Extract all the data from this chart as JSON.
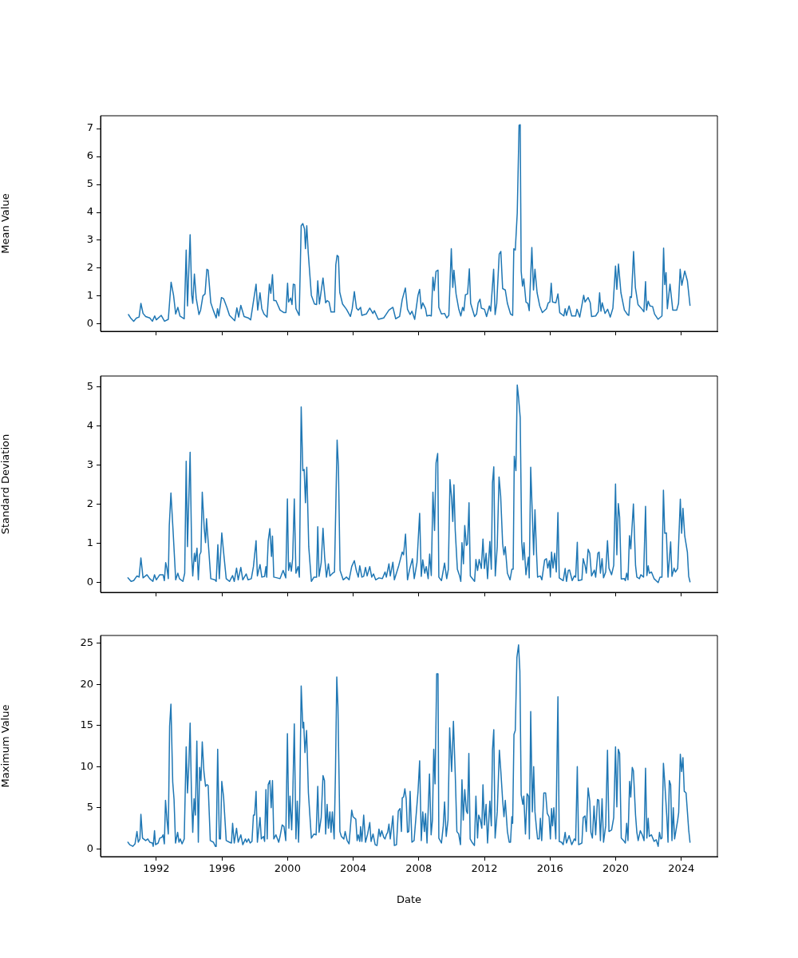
{
  "chart_data": [
    {
      "type": "line",
      "ylabel": "Mean Value",
      "xlim": [
        1988.6,
        2026.2
      ],
      "xticks": [
        1992,
        1996,
        2000,
        2004,
        2008,
        2012,
        2016,
        2020,
        2024
      ],
      "ylim": [
        -0.26,
        7.46
      ],
      "yticks": [
        0,
        1,
        2,
        3,
        4,
        5,
        6,
        7
      ],
      "tick_labels": "y",
      "series": [
        {
          "color": "#1f77b4",
          "x": [
            1990.3,
            1990.43,
            1990.62,
            1990.78,
            1990.95,
            1991.06,
            1991.19,
            1991.35,
            1991.6,
            1991.76,
            1991.9,
            1992.0,
            1992.3,
            1992.5,
            1992.73,
            1992.9,
            1993.05,
            1993.18,
            1993.31,
            1993.44,
            1993.7,
            1993.82,
            1993.9,
            1994.06,
            1994.16,
            1994.22,
            1994.32,
            1994.43,
            1994.6,
            1994.7,
            1994.84,
            1994.97,
            1995.08,
            1995.16,
            1995.32,
            1995.48,
            1995.65,
            1995.73,
            1995.81,
            1995.97,
            1996.1,
            1996.3,
            1996.46,
            1996.78,
            1996.91,
            1997.02,
            1997.15,
            1997.35,
            1997.6,
            1997.75,
            1998.08,
            1998.18,
            1998.32,
            1998.43,
            1998.56,
            1998.75,
            1998.89,
            1998.98,
            1999.08,
            1999.16,
            1999.29,
            1999.54,
            1999.78,
            1999.9,
            2000.0,
            2000.06,
            2000.19,
            2000.27,
            2000.35,
            2000.44,
            2000.51,
            2000.71,
            2000.83,
            2000.93,
            2001.03,
            2001.09,
            2001.17,
            2001.26,
            2001.45,
            2001.64,
            2001.77,
            2001.84,
            2001.94,
            2002.16,
            2002.32,
            2002.42,
            2002.53,
            2002.65,
            2002.86,
            2002.94,
            2003.02,
            2003.1,
            2003.18,
            2003.35,
            2003.59,
            2003.83,
            2003.94,
            2004.07,
            2004.2,
            2004.31,
            2004.45,
            2004.53,
            2004.8,
            2005.01,
            2005.2,
            2005.29,
            2005.53,
            2005.86,
            2006.02,
            2006.18,
            2006.42,
            2006.59,
            2006.83,
            2006.99,
            2007.18,
            2007.31,
            2007.47,
            2007.58,
            2007.75,
            2007.95,
            2008.05,
            2008.15,
            2008.24,
            2008.41,
            2008.49,
            2008.65,
            2008.76,
            2008.86,
            2008.94,
            2009.05,
            2009.17,
            2009.22,
            2009.38,
            2009.57,
            2009.7,
            2009.83,
            2009.98,
            2010.07,
            2010.14,
            2010.27,
            2010.43,
            2010.56,
            2010.67,
            2010.75,
            2010.84,
            2010.97,
            2011.08,
            2011.16,
            2011.4,
            2011.52,
            2011.62,
            2011.73,
            2011.81,
            2012.0,
            2012.13,
            2012.3,
            2012.38,
            2012.56,
            2012.65,
            2012.75,
            2012.9,
            2013.0,
            2013.11,
            2013.27,
            2013.4,
            2013.59,
            2013.72,
            2013.79,
            2013.88,
            2014.0,
            2014.11,
            2014.18,
            2014.24,
            2014.32,
            2014.4,
            2014.53,
            2014.65,
            2014.73,
            2014.89,
            2014.99,
            2015.08,
            2015.21,
            2015.37,
            2015.53,
            2015.78,
            2015.89,
            2015.99,
            2016.07,
            2016.15,
            2016.35,
            2016.48,
            2016.59,
            2016.84,
            2016.92,
            2017.0,
            2017.16,
            2017.32,
            2017.56,
            2017.64,
            2017.81,
            2018.05,
            2018.13,
            2018.32,
            2018.45,
            2018.53,
            2018.78,
            2018.94,
            2019.02,
            2019.1,
            2019.18,
            2019.35,
            2019.51,
            2019.67,
            2019.83,
            2019.99,
            2020.07,
            2020.17,
            2020.32,
            2020.53,
            2020.72,
            2020.8,
            2020.88,
            2020.96,
            2021.09,
            2021.2,
            2021.36,
            2021.61,
            2021.72,
            2021.82,
            2021.88,
            2021.98,
            2022.09,
            2022.25,
            2022.37,
            2022.58,
            2022.82,
            2022.92,
            2022.99,
            2023.07,
            2023.15,
            2023.31,
            2023.48,
            2023.72,
            2023.83,
            2023.93,
            2024.03,
            2024.21,
            2024.37,
            2024.53
          ],
          "values": [
            0.34,
            0.22,
            0.1,
            0.21,
            0.25,
            0.74,
            0.38,
            0.27,
            0.22,
            0.1,
            0.29,
            0.15,
            0.31,
            0.1,
            0.17,
            1.5,
            1.03,
            0.36,
            0.6,
            0.29,
            0.19,
            2.65,
            0.65,
            3.2,
            1.03,
            0.74,
            1.79,
            0.93,
            0.34,
            0.5,
            1.01,
            1.08,
            1.96,
            1.93,
            0.76,
            0.48,
            0.22,
            0.55,
            0.29,
            0.95,
            0.91,
            0.6,
            0.31,
            0.12,
            0.58,
            0.25,
            0.67,
            0.27,
            0.22,
            0.15,
            1.43,
            0.5,
            1.12,
            0.55,
            0.36,
            0.25,
            1.43,
            1.1,
            1.77,
            0.84,
            0.84,
            0.5,
            0.41,
            0.41,
            1.46,
            0.79,
            0.93,
            0.7,
            1.43,
            1.41,
            0.55,
            0.31,
            3.52,
            3.6,
            3.41,
            2.7,
            3.52,
            2.55,
            1.03,
            0.72,
            0.7,
            1.55,
            0.72,
            1.65,
            0.76,
            0.84,
            0.79,
            0.43,
            0.43,
            2.12,
            2.46,
            2.41,
            1.14,
            0.72,
            0.53,
            0.27,
            0.55,
            1.16,
            0.57,
            0.5,
            0.6,
            0.31,
            0.36,
            0.57,
            0.38,
            0.48,
            0.17,
            0.22,
            0.36,
            0.5,
            0.6,
            0.19,
            0.27,
            0.88,
            1.29,
            0.53,
            0.34,
            0.46,
            0.17,
            1.03,
            1.24,
            0.55,
            0.76,
            0.55,
            0.29,
            0.31,
            0.29,
            1.68,
            1.2,
            1.89,
            1.93,
            0.6,
            0.36,
            0.38,
            0.22,
            0.31,
            2.7,
            1.31,
            1.93,
            1.08,
            0.55,
            0.29,
            0.6,
            0.48,
            1.05,
            1.08,
            1.98,
            0.74,
            0.27,
            0.36,
            0.76,
            0.89,
            0.57,
            0.53,
            0.27,
            0.65,
            0.46,
            1.96,
            0.34,
            0.74,
            2.5,
            2.6,
            1.27,
            1.22,
            0.74,
            0.36,
            0.31,
            2.7,
            2.65,
            3.98,
            7.12,
            7.14,
            1.89,
            1.36,
            1.62,
            0.79,
            0.74,
            0.48,
            2.74,
            1.22,
            1.96,
            1.12,
            0.65,
            0.41,
            0.55,
            0.76,
            0.79,
            1.46,
            0.79,
            0.76,
            1.08,
            0.41,
            0.29,
            0.55,
            0.31,
            0.65,
            0.29,
            0.29,
            0.53,
            0.25,
            1.03,
            0.79,
            0.95,
            0.76,
            0.27,
            0.29,
            0.44,
            1.12,
            0.46,
            0.76,
            0.38,
            0.53,
            0.25,
            0.57,
            2.08,
            1.24,
            2.15,
            1.12,
            0.5,
            0.34,
            0.31,
            0.98,
            0.95,
            2.6,
            1.31,
            0.7,
            0.53,
            0.44,
            1.52,
            0.5,
            0.82,
            0.65,
            0.63,
            0.36,
            0.17,
            0.29,
            2.72,
            1.41,
            1.84,
            0.55,
            1.43,
            0.5,
            0.5,
            0.74,
            1.96,
            1.39,
            1.9,
            1.55,
            0.67
          ]
        }
      ]
    },
    {
      "type": "line",
      "ylabel": "Standard Deviation",
      "xlim": [
        1988.6,
        2026.2
      ],
      "xticks": [
        1992,
        1996,
        2000,
        2004,
        2008,
        2012,
        2016,
        2020,
        2024
      ],
      "ylim": [
        -0.25,
        5.28
      ],
      "yticks": [
        0,
        1,
        2,
        3,
        4,
        5
      ],
      "tick_labels": "y",
      "series": [
        {
          "color": "#1f77b4",
          "x": [
            1990.27,
            1990.46,
            1990.62,
            1990.82,
            1990.95,
            1991.06,
            1991.19,
            1991.43,
            1991.6,
            1991.79,
            1991.89,
            1992.0,
            1992.21,
            1992.41,
            1992.49,
            1992.57,
            1992.65,
            1992.73,
            1992.79,
            1992.89,
            1993.02,
            1993.18,
            1993.31,
            1993.41,
            1993.62,
            1993.73,
            1993.82,
            1993.9,
            1994.06,
            1994.16,
            1994.22,
            1994.32,
            1994.38,
            1994.48,
            1994.56,
            1994.64,
            1994.72,
            1994.8,
            1994.92,
            1995.0,
            1995.06,
            1995.16,
            1995.32,
            1995.57,
            1995.65,
            1995.75,
            1995.84,
            1995.99,
            1996.13,
            1996.26,
            1996.46,
            1996.65,
            1996.75,
            1996.89,
            1996.99,
            1997.15,
            1997.27,
            1997.48,
            1997.59,
            1997.79,
            1997.92,
            1998.08,
            1998.16,
            1998.32,
            1998.43,
            1998.6,
            1998.68,
            1998.73,
            1998.82,
            1998.92,
            1999.02,
            1999.08,
            1999.16,
            1999.37,
            1999.54,
            1999.73,
            1999.89,
            1999.99,
            2000.06,
            2000.15,
            2000.23,
            2000.31,
            2000.41,
            2000.51,
            2000.64,
            2000.72,
            2000.83,
            2000.93,
            2001.01,
            2001.09,
            2001.17,
            2001.29,
            2001.45,
            2001.61,
            2001.77,
            2001.84,
            2001.92,
            2002.05,
            2002.16,
            2002.26,
            2002.37,
            2002.49,
            2002.58,
            2002.75,
            2002.86,
            2003.02,
            2003.1,
            2003.2,
            2003.39,
            2003.59,
            2003.75,
            2003.91,
            2004.07,
            2004.19,
            2004.31,
            2004.4,
            2004.53,
            2004.64,
            2004.75,
            2004.85,
            2005.01,
            2005.13,
            2005.24,
            2005.37,
            2005.57,
            2005.78,
            2005.94,
            2006.02,
            2006.18,
            2006.26,
            2006.42,
            2006.51,
            2006.78,
            2006.99,
            2007.07,
            2007.19,
            2007.31,
            2007.44,
            2007.61,
            2007.72,
            2007.89,
            2008.05,
            2008.15,
            2008.24,
            2008.36,
            2008.45,
            2008.57,
            2008.66,
            2008.76,
            2008.86,
            2008.96,
            2009.05,
            2009.15,
            2009.22,
            2009.38,
            2009.57,
            2009.7,
            2009.8,
            2009.9,
            2010.0,
            2010.07,
            2010.14,
            2010.22,
            2010.35,
            2010.48,
            2010.56,
            2010.63,
            2010.72,
            2010.8,
            2010.9,
            2010.97,
            2011.06,
            2011.14,
            2011.4,
            2011.48,
            2011.58,
            2011.68,
            2011.81,
            2011.91,
            2012.0,
            2012.1,
            2012.19,
            2012.33,
            2012.42,
            2012.49,
            2012.57,
            2012.66,
            2012.78,
            2012.89,
            2012.99,
            2013.11,
            2013.19,
            2013.27,
            2013.4,
            2013.56,
            2013.67,
            2013.75,
            2013.82,
            2013.92,
            2014.0,
            2014.08,
            2014.18,
            2014.27,
            2014.35,
            2014.41,
            2014.53,
            2014.68,
            2014.73,
            2014.82,
            2014.92,
            2015.0,
            2015.08,
            2015.18,
            2015.24,
            2015.41,
            2015.5,
            2015.67,
            2015.78,
            2015.86,
            2015.96,
            2016.02,
            2016.09,
            2016.18,
            2016.28,
            2016.38,
            2016.48,
            2016.56,
            2016.8,
            2016.92,
            2017.0,
            2017.11,
            2017.19,
            2017.35,
            2017.48,
            2017.56,
            2017.66,
            2017.72,
            2017.94,
            2018.02,
            2018.13,
            2018.21,
            2018.32,
            2018.42,
            2018.53,
            2018.7,
            2018.78,
            2018.91,
            2018.99,
            2019.07,
            2019.17,
            2019.26,
            2019.39,
            2019.5,
            2019.59,
            2019.75,
            2019.88,
            2019.99,
            2020.07,
            2020.16,
            2020.24,
            2020.34,
            2020.53,
            2020.59,
            2020.67,
            2020.75,
            2020.84,
            2020.92,
            2021.08,
            2021.21,
            2021.29,
            2021.45,
            2021.53,
            2021.7,
            2021.82,
            2021.9,
            2021.98,
            2022.05,
            2022.18,
            2022.34,
            2022.59,
            2022.7,
            2022.82,
            2022.91,
            2022.99,
            2023.09,
            2023.19,
            2023.35,
            2023.43,
            2023.56,
            2023.64,
            2023.78,
            2023.94,
            2024.02,
            2024.1,
            2024.21,
            2024.37,
            2024.45,
            2024.53
          ],
          "values": [
            0.12,
            0.03,
            0.05,
            0.17,
            0.14,
            0.63,
            0.12,
            0.2,
            0.1,
            0.03,
            0.2,
            0.07,
            0.2,
            0.2,
            0.05,
            0.51,
            0.36,
            0.1,
            1.46,
            2.29,
            1.33,
            0.07,
            0.24,
            0.1,
            0.03,
            0.24,
            3.1,
            0.92,
            3.33,
            0.65,
            0.17,
            0.75,
            0.54,
            0.88,
            0.07,
            0.71,
            0.78,
            2.31,
            1.39,
            1.02,
            1.63,
            1.05,
            0.1,
            0.07,
            0.03,
            0.97,
            0.1,
            1.27,
            0.65,
            0.1,
            0.03,
            0.18,
            0.03,
            0.37,
            0.07,
            0.39,
            0.07,
            0.22,
            0.07,
            0.1,
            0.41,
            1.07,
            0.17,
            0.46,
            0.14,
            0.16,
            0.41,
            0.14,
            1.07,
            1.38,
            0.67,
            1.19,
            0.14,
            0.12,
            0.1,
            0.31,
            0.12,
            2.14,
            0.31,
            0.51,
            0.29,
            0.61,
            2.14,
            0.24,
            0.41,
            0.14,
            4.49,
            2.86,
            2.89,
            2.04,
            2.95,
            0.92,
            0.03,
            0.14,
            0.14,
            1.43,
            0.16,
            0.51,
            1.39,
            0.65,
            0.14,
            0.48,
            0.17,
            0.24,
            0.27,
            3.64,
            2.96,
            0.31,
            0.07,
            0.14,
            0.07,
            0.41,
            0.56,
            0.31,
            0.14,
            0.43,
            0.14,
            0.16,
            0.39,
            0.17,
            0.41,
            0.14,
            0.22,
            0.07,
            0.12,
            0.1,
            0.27,
            0.14,
            0.48,
            0.17,
            0.52,
            0.07,
            0.44,
            0.78,
            0.71,
            1.24,
            0.07,
            0.34,
            0.61,
            0.1,
            0.52,
            1.77,
            0.16,
            0.58,
            0.24,
            0.41,
            0.1,
            0.73,
            0.18,
            2.31,
            1.33,
            3.06,
            3.3,
            0.14,
            0.05,
            0.5,
            0.1,
            0.34,
            2.63,
            2.14,
            1.56,
            2.5,
            1.33,
            0.34,
            0.18,
            0.03,
            1.02,
            0.48,
            1.46,
            0.95,
            0.99,
            2.04,
            0.17,
            0.03,
            0.59,
            0.31,
            0.59,
            0.36,
            1.11,
            0.36,
            0.75,
            0.1,
            1.05,
            0.34,
            2.55,
            2.96,
            0.17,
            0.92,
            2.7,
            2.21,
            0.99,
            0.71,
            0.92,
            0.24,
            0.07,
            0.34,
            0.34,
            3.23,
            2.86,
            5.05,
            4.73,
            4.22,
            1.05,
            0.58,
            1.02,
            0.2,
            0.65,
            0.12,
            2.95,
            1.73,
            0.71,
            1.86,
            0.71,
            0.14,
            0.17,
            0.07,
            0.58,
            0.61,
            0.37,
            0.56,
            0.14,
            0.78,
            0.37,
            0.75,
            0.27,
            1.79,
            0.12,
            0.05,
            0.36,
            0.03,
            0.31,
            0.32,
            0.05,
            0.17,
            0.14,
            1.03,
            0.05,
            0.07,
            0.61,
            0.44,
            0.24,
            0.85,
            0.75,
            0.17,
            0.32,
            0.14,
            0.75,
            0.78,
            0.24,
            0.61,
            0.12,
            0.27,
            1.07,
            0.37,
            0.2,
            0.44,
            2.52,
            0.71,
            2.02,
            1.67,
            0.09,
            0.1,
            0.05,
            0.24,
            0.07,
            1.2,
            0.86,
            2.01,
            0.44,
            0.14,
            0.1,
            0.2,
            0.14,
            1.95,
            0.18,
            0.43,
            0.24,
            0.27,
            0.1,
            0.0,
            0.14,
            0.14,
            2.36,
            1.26,
            1.27,
            0.14,
            1.04,
            0.16,
            0.37,
            0.27,
            0.36,
            2.13,
            1.26,
            1.9,
            1.19,
            0.78,
            0.16,
            0.02
          ]
        }
      ]
    },
    {
      "type": "line",
      "ylabel": "Maximum Value",
      "xlabel": "Date",
      "xlim": [
        1988.6,
        2026.2
      ],
      "xticks": [
        1992,
        1996,
        2000,
        2004,
        2008,
        2012,
        2016,
        2020,
        2024
      ],
      "ylim": [
        -0.95,
        25.95
      ],
      "yticks": [
        0,
        5,
        10,
        15,
        20,
        25
      ],
      "series": [
        {
          "color": "#1f77b4",
          "x": [
            1990.27,
            1990.38,
            1990.57,
            1990.7,
            1990.82,
            1990.9,
            1991.0,
            1991.06,
            1991.16,
            1991.35,
            1991.48,
            1991.6,
            1991.76,
            1991.81,
            1991.89,
            1991.95,
            1992.11,
            1992.21,
            1992.34,
            1992.41,
            1992.49,
            1992.56,
            1992.65,
            1992.73,
            1992.81,
            1992.89,
            1993.0,
            1993.08,
            1993.17,
            1993.3,
            1993.38,
            1993.46,
            1993.57,
            1993.7,
            1993.82,
            1993.9,
            1993.98,
            1994.06,
            1994.14,
            1994.22,
            1994.3,
            1994.38,
            1994.47,
            1994.56,
            1994.64,
            1994.72,
            1994.8,
            1994.9,
            1995.0,
            1995.08,
            1995.16,
            1995.29,
            1995.48,
            1995.6,
            1995.65,
            1995.74,
            1995.84,
            1995.91,
            1995.99,
            1996.1,
            1996.26,
            1996.46,
            1996.58,
            1996.65,
            1996.75,
            1996.89,
            1996.99,
            1997.15,
            1997.27,
            1997.43,
            1997.51,
            1997.62,
            1997.72,
            1997.83,
            1997.92,
            1997.99,
            1998.08,
            1998.16,
            1998.32,
            1998.4,
            1998.53,
            1998.6,
            1998.68,
            1998.76,
            1998.82,
            1998.92,
            1999.0,
            1999.08,
            1999.16,
            1999.29,
            1999.46,
            1999.54,
            1999.67,
            1999.78,
            1999.89,
            1999.99,
            2000.08,
            2000.15,
            2000.25,
            2000.31,
            2000.41,
            2000.51,
            2000.59,
            2000.67,
            2000.74,
            2000.83,
            2000.93,
            2000.98,
            2001.06,
            2001.16,
            2001.27,
            2001.45,
            2001.61,
            2001.74,
            2001.84,
            2001.92,
            2002.05,
            2002.16,
            2002.25,
            2002.32,
            2002.41,
            2002.49,
            2002.58,
            2002.65,
            2002.73,
            2002.84,
            2002.92,
            2003.0,
            2003.07,
            2003.19,
            2003.28,
            2003.43,
            2003.51,
            2003.63,
            2003.75,
            2003.91,
            2003.99,
            2004.16,
            2004.24,
            2004.31,
            2004.4,
            2004.45,
            2004.53,
            2004.64,
            2004.75,
            2004.88,
            2005.01,
            2005.09,
            2005.21,
            2005.34,
            2005.45,
            2005.57,
            2005.65,
            2005.74,
            2005.86,
            2005.94,
            2006.02,
            2006.1,
            2006.18,
            2006.26,
            2006.42,
            2006.51,
            2006.64,
            2006.75,
            2006.86,
            2006.94,
            2006.99,
            2007.07,
            2007.15,
            2007.23,
            2007.31,
            2007.39,
            2007.47,
            2007.58,
            2007.71,
            2007.95,
            2008.05,
            2008.15,
            2008.24,
            2008.34,
            2008.41,
            2008.5,
            2008.65,
            2008.75,
            2008.83,
            2008.91,
            2008.99,
            2009.09,
            2009.17,
            2009.22,
            2009.38,
            2009.49,
            2009.57,
            2009.67,
            2009.78,
            2009.88,
            2010.0,
            2010.11,
            2010.22,
            2010.32,
            2010.43,
            2010.54,
            2010.63,
            2010.71,
            2010.8,
            2010.9,
            2010.97,
            2011.05,
            2011.13,
            2011.24,
            2011.39,
            2011.48,
            2011.58,
            2011.65,
            2011.74,
            2011.84,
            2011.91,
            2012.0,
            2012.1,
            2012.19,
            2012.33,
            2012.42,
            2012.49,
            2012.57,
            2012.65,
            2012.78,
            2012.91,
            2013.0,
            2013.11,
            2013.19,
            2013.27,
            2013.4,
            2013.51,
            2013.59,
            2013.67,
            2013.72,
            2013.8,
            2013.88,
            2013.98,
            2014.08,
            2014.16,
            2014.24,
            2014.34,
            2014.4,
            2014.5,
            2014.6,
            2014.69,
            2014.74,
            2014.82,
            2014.92,
            2015.0,
            2015.08,
            2015.18,
            2015.24,
            2015.34,
            2015.41,
            2015.49,
            2015.62,
            2015.73,
            2015.83,
            2015.94,
            2016.02,
            2016.09,
            2016.15,
            2016.23,
            2016.35,
            2016.48,
            2016.56,
            2016.7,
            2016.8,
            2016.92,
            2017.0,
            2017.16,
            2017.32,
            2017.48,
            2017.56,
            2017.66,
            2017.74,
            2017.94,
            2018.02,
            2018.13,
            2018.21,
            2018.32,
            2018.42,
            2018.49,
            2018.58,
            2018.68,
            2018.78,
            2018.89,
            2018.97,
            2019.07,
            2019.17,
            2019.26,
            2019.39,
            2019.5,
            2019.59,
            2019.75,
            2019.88,
            2019.99,
            2020.07,
            2020.16,
            2020.24,
            2020.34,
            2020.48,
            2020.59,
            2020.67,
            2020.75,
            2020.85,
            2020.92,
            2021.01,
            2021.08,
            2021.21,
            2021.29,
            2021.37,
            2021.5,
            2021.62,
            2021.73,
            2021.82,
            2021.9,
            2021.98,
            2022.05,
            2022.18,
            2022.34,
            2022.47,
            2022.59,
            2022.67,
            2022.75,
            2022.82,
            2022.91,
            2022.99,
            2023.12,
            2023.19,
            2023.27,
            2023.35,
            2023.43,
            2023.51,
            2023.59,
            2023.78,
            2023.84,
            2023.94,
            2024.02,
            2024.1,
            2024.18,
            2024.29,
            2024.45,
            2024.53
          ],
          "values": [
            0.8,
            0.5,
            0.3,
            0.6,
            2.1,
            0.8,
            1.2,
            4.2,
            1.3,
            1.0,
            1.2,
            0.8,
            0.7,
            0.3,
            2.2,
            0.5,
            0.7,
            1.3,
            1.4,
            1.7,
            0.6,
            5.9,
            3.5,
            1.8,
            14.9,
            17.6,
            8.1,
            6.0,
            0.7,
            2.0,
            0.8,
            1.2,
            0.6,
            1.2,
            12.4,
            6.8,
            10.1,
            15.3,
            6.8,
            2.0,
            6.1,
            4.1,
            13.1,
            0.8,
            9.9,
            8.3,
            13.0,
            9.4,
            7.6,
            7.8,
            7.7,
            1.0,
            0.8,
            0.3,
            0.3,
            12.1,
            1.2,
            1.2,
            8.2,
            6.3,
            1.0,
            0.8,
            0.7,
            3.1,
            0.7,
            2.5,
            0.8,
            1.7,
            0.5,
            1.2,
            0.8,
            1.2,
            0.7,
            0.9,
            4.1,
            4.1,
            7.0,
            0.8,
            3.8,
            1.2,
            1.5,
            0.9,
            7.2,
            1.2,
            7.8,
            8.3,
            5.0,
            8.3,
            1.2,
            1.7,
            0.8,
            1.5,
            2.9,
            2.7,
            1.0,
            14.0,
            2.5,
            6.4,
            2.3,
            5.8,
            15.2,
            1.2,
            5.8,
            0.8,
            5.8,
            19.8,
            14.7,
            15.4,
            11.7,
            14.4,
            6.8,
            1.3,
            1.8,
            1.7,
            7.6,
            2.0,
            3.8,
            8.9,
            8.3,
            1.8,
            5.4,
            2.5,
            4.5,
            2.0,
            4.5,
            1.2,
            9.4,
            20.9,
            17.3,
            2.1,
            1.5,
            1.2,
            2.1,
            1.0,
            0.6,
            4.7,
            3.9,
            3.6,
            1.0,
            1.7,
            0.9,
            2.7,
            0.9,
            4.1,
            0.8,
            1.8,
            3.2,
            0.9,
            1.8,
            0.5,
            0.4,
            2.4,
            1.5,
            2.2,
            1.4,
            1.2,
            1.7,
            2.0,
            3.0,
            1.2,
            4.0,
            0.4,
            0.5,
            4.6,
            4.9,
            2.1,
            6.2,
            6.3,
            7.3,
            6.1,
            2.0,
            2.1,
            7.0,
            0.8,
            1.0,
            6.9,
            10.7,
            1.0,
            4.5,
            2.1,
            4.3,
            0.7,
            9.1,
            1.7,
            3.5,
            12.1,
            7.9,
            21.3,
            21.3,
            1.3,
            0.7,
            2.8,
            5.7,
            1.5,
            3.5,
            14.7,
            9.4,
            15.5,
            9.1,
            2.1,
            1.8,
            0.5,
            8.4,
            3.5,
            7.2,
            4.6,
            4.3,
            11.6,
            1.2,
            0.8,
            0.4,
            6.4,
            1.3,
            4.1,
            3.6,
            2.5,
            7.8,
            2.9,
            5.4,
            0.7,
            5.8,
            2.8,
            12.0,
            14.5,
            1.3,
            4.5,
            12.0,
            9.4,
            5.9,
            3.9,
            5.9,
            2.1,
            0.8,
            0.8,
            3.9,
            3.1,
            13.9,
            14.4,
            23.3,
            24.8,
            21.6,
            6.6,
            5.4,
            6.4,
            1.8,
            6.7,
            6.4,
            1.2,
            16.7,
            4.5,
            10.0,
            4.5,
            2.3,
            1.2,
            1.2,
            3.7,
            1.0,
            6.8,
            6.8,
            4.3,
            3.9,
            1.2,
            4.9,
            2.8,
            5.0,
            1.2,
            18.5,
            0.9,
            0.8,
            0.5,
            2.0,
            0.7,
            1.6,
            0.5,
            1.2,
            1.0,
            10.0,
            0.5,
            0.7,
            3.8,
            4.0,
            2.1,
            7.4,
            5.8,
            2.0,
            1.3,
            5.2,
            1.7,
            6.0,
            5.9,
            1.0,
            6.1,
            0.8,
            2.8,
            12.0,
            2.1,
            2.3,
            3.8,
            12.4,
            5.1,
            12.1,
            11.6,
            1.3,
            1.0,
            0.7,
            3.1,
            1.0,
            8.2,
            6.3,
            9.9,
            9.5,
            4.1,
            2.0,
            1.0,
            2.2,
            1.7,
            1.0,
            9.8,
            1.3,
            3.7,
            1.5,
            1.7,
            0.9,
            1.1,
            0.3,
            2.0,
            1.2,
            1.3,
            10.4,
            8.1,
            3.8,
            0.8,
            8.3,
            7.8,
            1.0,
            5.0,
            1.2,
            3.5,
            4.4,
            11.5,
            9.4,
            11.1,
            7.0,
            6.8,
            2.3,
            0.8
          ]
        }
      ]
    }
  ]
}
